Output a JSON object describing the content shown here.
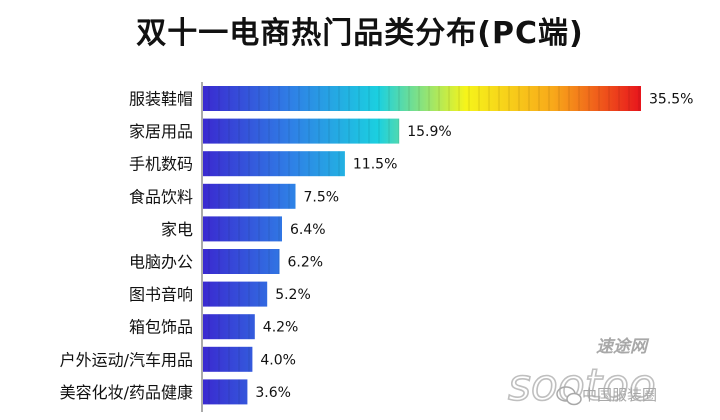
{
  "chart_data": {
    "type": "bar",
    "orientation": "horizontal",
    "title": "双十一电商热门品类分布(PC端)",
    "categories": [
      "服装鞋帽",
      "家居用品",
      "手机数码",
      "食品饮料",
      "家电",
      "电脑办公",
      "图书音响",
      "箱包饰品",
      "户外运动/汽车用品",
      "美容化妆/药品健康"
    ],
    "values": [
      35.5,
      15.9,
      11.5,
      7.5,
      6.4,
      6.2,
      5.2,
      4.2,
      4.0,
      3.6
    ],
    "value_labels": [
      "35.5%",
      "15.9%",
      "11.5%",
      "7.5%",
      "6.4%",
      "6.2%",
      "5.2%",
      "4.2%",
      "4.0%",
      "3.6%"
    ],
    "xlabel": "",
    "ylabel": "",
    "xlim": [
      0,
      35.5
    ],
    "grid": false,
    "legend": "none"
  },
  "watermark": {
    "brand_text": "速途网",
    "source_text": "中国服装圈",
    "logo_text": "sootoo"
  },
  "colors": {
    "gradient": [
      "#3a2ad0",
      "#2f7fe6",
      "#1bd0e0",
      "#f6f41a",
      "#f8a81a",
      "#e8141c"
    ],
    "axis": "#555555",
    "text": "#111111"
  }
}
